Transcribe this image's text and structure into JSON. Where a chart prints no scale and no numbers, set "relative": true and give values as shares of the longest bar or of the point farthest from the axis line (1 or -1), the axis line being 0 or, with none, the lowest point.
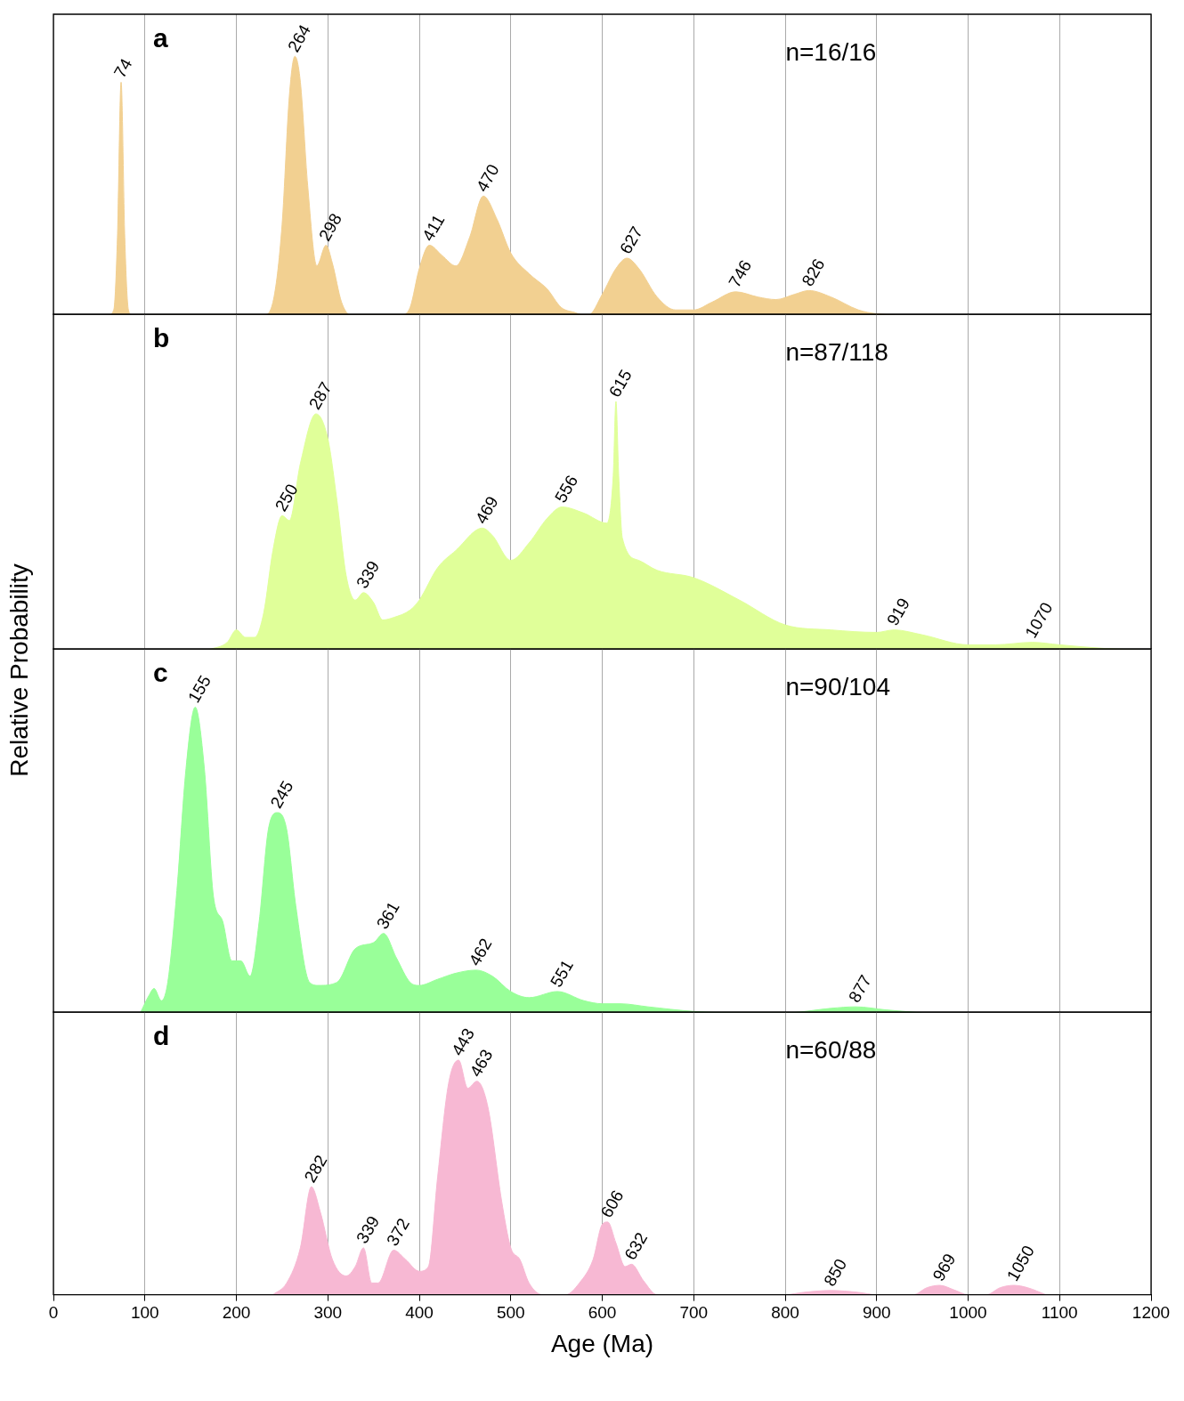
{
  "chart_data": [
    {
      "type": "area",
      "title": "a",
      "relative": true,
      "color": "#f2d091",
      "xlim": [
        0,
        1200
      ],
      "xticks": [
        0,
        100,
        200,
        300,
        400,
        500,
        600,
        700,
        800,
        900,
        1000,
        1100,
        1200
      ],
      "tick_labels": false,
      "grid": "x",
      "legend": false,
      "x": [
        60,
        66,
        70,
        74,
        78,
        82,
        86,
        230,
        240,
        250,
        258,
        264,
        270,
        278,
        288,
        298,
        305,
        315,
        325,
        380,
        390,
        400,
        411,
        425,
        440,
        455,
        470,
        485,
        500,
        520,
        540,
        555,
        570,
        580,
        585,
        600,
        615,
        627,
        640,
        660,
        680,
        700,
        720,
        746,
        770,
        790,
        810,
        826,
        850,
        880,
        900,
        920
      ],
      "values": [
        0,
        0.02,
        0.3,
        0.9,
        0.3,
        0.02,
        0,
        0,
        0.05,
        0.35,
        0.85,
        1,
        0.9,
        0.5,
        0.19,
        0.27,
        0.2,
        0.05,
        0,
        0,
        0.03,
        0.18,
        0.27,
        0.23,
        0.19,
        0.3,
        0.46,
        0.37,
        0.24,
        0.16,
        0.1,
        0.03,
        0.01,
        0,
        0,
        0.08,
        0.18,
        0.22,
        0.18,
        0.07,
        0.02,
        0.02,
        0.05,
        0.09,
        0.07,
        0.06,
        0.08,
        0.095,
        0.07,
        0.02,
        0.005,
        0
      ],
      "annotations": [
        {
          "text": "74",
          "x": 74,
          "y": 0.9
        },
        {
          "text": "264",
          "x": 264,
          "y": 1
        },
        {
          "text": "298",
          "x": 298,
          "y": 0.27
        },
        {
          "text": "411",
          "x": 411,
          "y": 0.27
        },
        {
          "text": "470",
          "x": 470,
          "y": 0.46
        },
        {
          "text": "627",
          "x": 627,
          "y": 0.22
        },
        {
          "text": "746",
          "x": 746,
          "y": 0.09
        },
        {
          "text": "826",
          "x": 826,
          "y": 0.095
        },
        "n=16/16"
      ]
    },
    {
      "type": "area",
      "title": "b",
      "ylabel": "Relative Probability",
      "relative": true,
      "color": "#e0ff99",
      "xlim": [
        0,
        1200
      ],
      "xticks": [
        0,
        100,
        200,
        300,
        400,
        500,
        600,
        700,
        800,
        900,
        1000,
        1100,
        1200
      ],
      "tick_labels": false,
      "grid": "x",
      "legend": false,
      "x": [
        170,
        190,
        200,
        210,
        220,
        230,
        240,
        250,
        258,
        270,
        287,
        300,
        310,
        320,
        330,
        339,
        350,
        360,
        372,
        390,
        400,
        420,
        440,
        469,
        480,
        500,
        520,
        540,
        556,
        580,
        605,
        612,
        615,
        618,
        622,
        640,
        660,
        700,
        750,
        800,
        850,
        900,
        919,
        950,
        1000,
        1030,
        1070,
        1100,
        1150,
        1190
      ],
      "values": [
        0,
        0.03,
        0.08,
        0.05,
        0.05,
        0.15,
        0.4,
        0.54,
        0.52,
        0.75,
        0.95,
        0.85,
        0.6,
        0.3,
        0.2,
        0.23,
        0.19,
        0.12,
        0.13,
        0.16,
        0.2,
        0.33,
        0.4,
        0.49,
        0.46,
        0.36,
        0.43,
        0.53,
        0.575,
        0.55,
        0.51,
        0.7,
        1,
        0.7,
        0.45,
        0.36,
        0.32,
        0.29,
        0.2,
        0.1,
        0.08,
        0.07,
        0.08,
        0.06,
        0.02,
        0.02,
        0.03,
        0.02,
        0.005,
        0
      ],
      "annotations": [
        {
          "text": "250",
          "x": 250,
          "y": 0.54
        },
        {
          "text": "287",
          "x": 287,
          "y": 0.95
        },
        {
          "text": "339",
          "x": 339,
          "y": 0.23
        },
        {
          "text": "469",
          "x": 469,
          "y": 0.49
        },
        {
          "text": "556",
          "x": 556,
          "y": 0.575
        },
        {
          "text": "615",
          "x": 615,
          "y": 1
        },
        {
          "text": "919",
          "x": 919,
          "y": 0.08
        },
        {
          "text": "1070",
          "x": 1070,
          "y": 0.03
        },
        "n=87/118"
      ]
    },
    {
      "type": "area",
      "title": "c",
      "relative": true,
      "color": "#99ff99",
      "xlim": [
        0,
        1200
      ],
      "xticks": [
        0,
        100,
        200,
        300,
        400,
        500,
        600,
        700,
        800,
        900,
        1000,
        1100,
        1200
      ],
      "tick_labels": false,
      "grid": "x",
      "legend": false,
      "x": [
        95,
        105,
        110,
        118,
        125,
        135,
        145,
        155,
        165,
        175,
        185,
        195,
        205,
        215,
        225,
        235,
        245,
        255,
        265,
        280,
        290,
        310,
        330,
        350,
        361,
        375,
        390,
        400,
        420,
        440,
        462,
        480,
        500,
        520,
        551,
        580,
        600,
        620,
        650,
        700,
        750,
        800,
        850,
        877,
        910,
        950
      ],
      "values": [
        0,
        0.06,
        0.08,
        0.04,
        0.1,
        0.4,
        0.8,
        1,
        0.8,
        0.38,
        0.3,
        0.17,
        0.17,
        0.12,
        0.3,
        0.6,
        0.655,
        0.6,
        0.35,
        0.1,
        0.09,
        0.1,
        0.21,
        0.23,
        0.26,
        0.18,
        0.1,
        0.09,
        0.11,
        0.13,
        0.14,
        0.12,
        0.07,
        0.05,
        0.07,
        0.04,
        0.03,
        0.03,
        0.02,
        0.005,
        0,
        0,
        0.015,
        0.02,
        0.01,
        0
      ],
      "annotations": [
        {
          "text": "155",
          "x": 155,
          "y": 1
        },
        {
          "text": "245",
          "x": 245,
          "y": 0.655
        },
        {
          "text": "361",
          "x": 361,
          "y": 0.26
        },
        {
          "text": "462",
          "x": 462,
          "y": 0.14
        },
        {
          "text": "551",
          "x": 551,
          "y": 0.07
        },
        {
          "text": "877",
          "x": 877,
          "y": 0.02
        },
        "n=90/104"
      ]
    },
    {
      "type": "area",
      "title": "d",
      "xlabel": "Age (Ma)",
      "relative": true,
      "color": "#f7b8d3",
      "xlim": [
        0,
        1200
      ],
      "xticks": [
        0,
        100,
        200,
        300,
        400,
        500,
        600,
        700,
        800,
        900,
        1000,
        1100,
        1200
      ],
      "tick_labels": "x",
      "grid": "x",
      "legend": false,
      "x": [
        240,
        255,
        270,
        282,
        292,
        305,
        320,
        330,
        339,
        348,
        355,
        372,
        385,
        400,
        410,
        420,
        432,
        443,
        453,
        463,
        475,
        490,
        500,
        510,
        520,
        535,
        560,
        575,
        590,
        600,
        606,
        615,
        625,
        632,
        645,
        660,
        800,
        820,
        850,
        880,
        900,
        940,
        955,
        969,
        985,
        1000,
        1020,
        1035,
        1050,
        1065,
        1085
      ],
      "values": [
        0,
        0.05,
        0.2,
        0.46,
        0.35,
        0.15,
        0.08,
        0.12,
        0.2,
        0.05,
        0.05,
        0.19,
        0.15,
        0.1,
        0.12,
        0.5,
        0.9,
        1,
        0.88,
        0.91,
        0.8,
        0.4,
        0.2,
        0.15,
        0.05,
        0,
        0,
        0.05,
        0.15,
        0.3,
        0.31,
        0.22,
        0.12,
        0.13,
        0.06,
        0,
        0,
        0.01,
        0.018,
        0.01,
        0,
        0,
        0.03,
        0.04,
        0.02,
        0,
        0,
        0.03,
        0.04,
        0.03,
        0
      ],
      "annotations": [
        {
          "text": "282",
          "x": 282,
          "y": 0.46
        },
        {
          "text": "339",
          "x": 339,
          "y": 0.2
        },
        {
          "text": "372",
          "x": 372,
          "y": 0.19
        },
        {
          "text": "443",
          "x": 443,
          "y": 1
        },
        {
          "text": "463",
          "x": 463,
          "y": 0.91
        },
        {
          "text": "606",
          "x": 606,
          "y": 0.31
        },
        {
          "text": "632",
          "x": 632,
          "y": 0.13
        },
        {
          "text": "850",
          "x": 850,
          "y": 0.018
        },
        {
          "text": "969",
          "x": 969,
          "y": 0.04
        },
        {
          "text": "1050",
          "x": 1050,
          "y": 0.04
        },
        "n=60/88"
      ]
    }
  ]
}
